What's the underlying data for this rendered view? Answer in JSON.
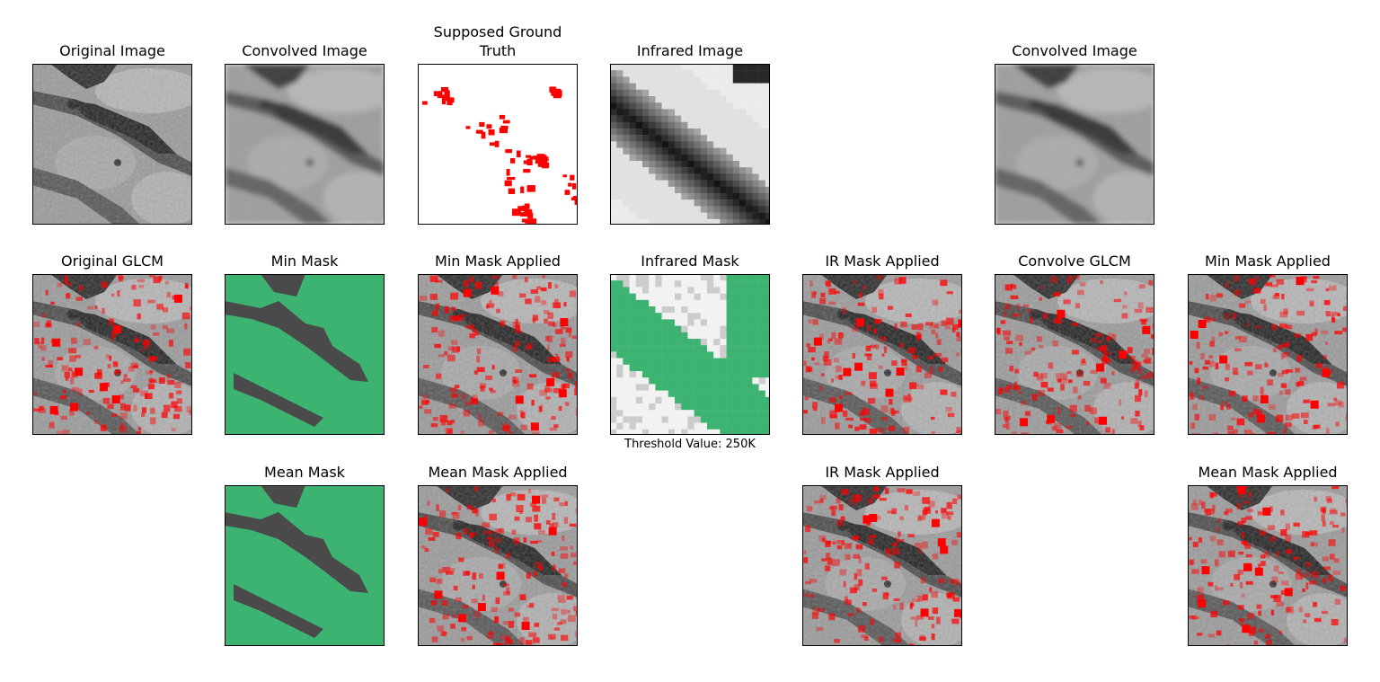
{
  "panels": [
    {
      "title": "Original Image"
    },
    {
      "title": "Convolved Image"
    },
    {
      "title": "Supposed Ground Truth"
    },
    {
      "title": "Infrared Image"
    },
    {
      "title": "Convolved Image"
    },
    {
      "title": "Original GLCM"
    },
    {
      "title": "Min Mask"
    },
    {
      "title": "Min Mask Applied"
    },
    {
      "title": "Infrared Mask",
      "caption": "Threshold Value: 250K"
    },
    {
      "title": "IR Mask Applied"
    },
    {
      "title": "Convolve GLCM"
    },
    {
      "title": "Min Mask Applied"
    },
    {
      "title": "Mean Mask"
    },
    {
      "title": "Mean Mask Applied"
    },
    {
      "title": "IR Mask Applied"
    },
    {
      "title": "Mean Mask Applied"
    }
  ]
}
